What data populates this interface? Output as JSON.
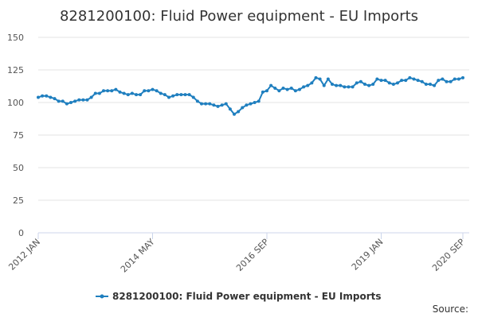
{
  "chart_data": {
    "type": "line",
    "title": "8281200100: Fluid Power equipment - EU Imports",
    "source": "Source:",
    "categories": [
      "2012 JAN",
      null,
      null,
      null,
      null,
      null,
      null,
      null,
      null,
      null,
      null,
      null,
      null,
      null,
      null,
      null,
      null,
      null,
      null,
      null,
      null,
      null,
      null,
      null,
      null,
      null,
      null,
      null,
      "2014 MAY",
      null,
      null,
      null,
      null,
      null,
      null,
      null,
      null,
      null,
      null,
      null,
      null,
      null,
      null,
      null,
      null,
      null,
      null,
      null,
      null,
      null,
      null,
      null,
      null,
      null,
      null,
      null,
      "2016 SEP",
      null,
      null,
      null,
      null,
      null,
      null,
      null,
      null,
      null,
      null,
      null,
      null,
      null,
      null,
      null,
      null,
      null,
      null,
      null,
      null,
      null,
      null,
      null,
      null,
      null,
      null,
      null,
      "2019 JAN",
      null,
      null,
      null,
      null,
      null,
      null,
      null,
      null,
      null,
      null,
      null,
      null,
      null,
      null,
      null,
      null,
      null,
      null,
      null,
      "2020 SEP"
    ],
    "series": [
      {
        "name": "8281200100: Fluid Power equipment - EU Imports",
        "color": "#1f7fbf",
        "values": [
          104,
          105,
          105,
          104,
          103,
          101,
          101,
          99,
          100,
          101,
          102,
          102,
          102,
          104,
          107,
          107,
          109,
          109,
          109,
          110,
          108,
          107,
          106,
          107,
          106,
          106,
          109,
          109,
          110,
          109,
          107,
          106,
          104,
          105,
          106,
          106,
          106,
          106,
          104,
          101,
          99,
          99,
          99,
          98,
          97,
          98,
          99,
          95,
          91,
          93,
          96,
          98,
          99,
          100,
          101,
          108,
          109,
          113,
          111,
          109,
          111,
          110,
          111,
          109,
          110,
          112,
          113,
          115,
          119,
          118,
          113,
          118,
          114,
          113,
          113,
          112,
          112,
          112,
          115,
          116,
          114,
          113,
          114,
          118,
          117,
          117,
          115,
          114,
          115,
          117,
          117,
          119,
          118,
          117,
          116,
          114,
          114,
          113,
          117,
          118,
          116,
          116,
          118,
          118,
          119
        ]
      }
    ],
    "ylim": [
      0,
      150
    ],
    "yticks": [
      0,
      25,
      50,
      75,
      100,
      125,
      150
    ],
    "grid": true
  }
}
